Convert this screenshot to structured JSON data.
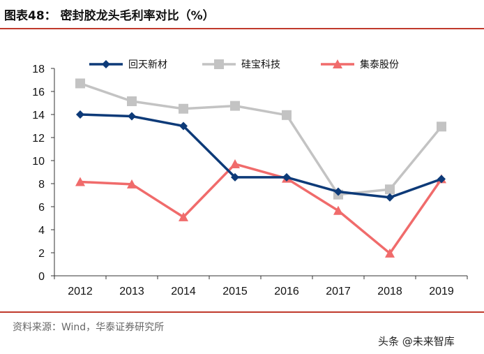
{
  "header": {
    "title": "图表48：  密封胶龙头毛利率对比（%）"
  },
  "footer": {
    "source": "资料来源：Wind，华泰证券研究所",
    "watermark": "头条 @未来智库"
  },
  "chart_data": {
    "type": "line",
    "title": "密封胶龙头毛利率对比（%）",
    "categories": [
      "2012",
      "2013",
      "2014",
      "2015",
      "2016",
      "2017",
      "2018",
      "2019"
    ],
    "ylim": [
      0,
      18
    ],
    "yticks": [
      0,
      2,
      4,
      6,
      8,
      10,
      12,
      14,
      16,
      18
    ],
    "legend_position": "top",
    "series": [
      {
        "name": "回天新材",
        "color": "#0d3a78",
        "marker": "diamond",
        "values": [
          14.0,
          13.85,
          13.0,
          8.55,
          8.55,
          7.3,
          6.8,
          8.4
        ]
      },
      {
        "name": "硅宝科技",
        "color": "#c3c3c3",
        "marker": "square",
        "values": [
          16.7,
          15.15,
          14.5,
          14.75,
          13.95,
          7.05,
          7.5,
          12.95
        ]
      },
      {
        "name": "集泰股份",
        "color": "#f06b6b",
        "marker": "triangle",
        "values": [
          8.15,
          7.95,
          5.1,
          9.7,
          8.45,
          5.65,
          1.95,
          8.4
        ]
      }
    ]
  }
}
